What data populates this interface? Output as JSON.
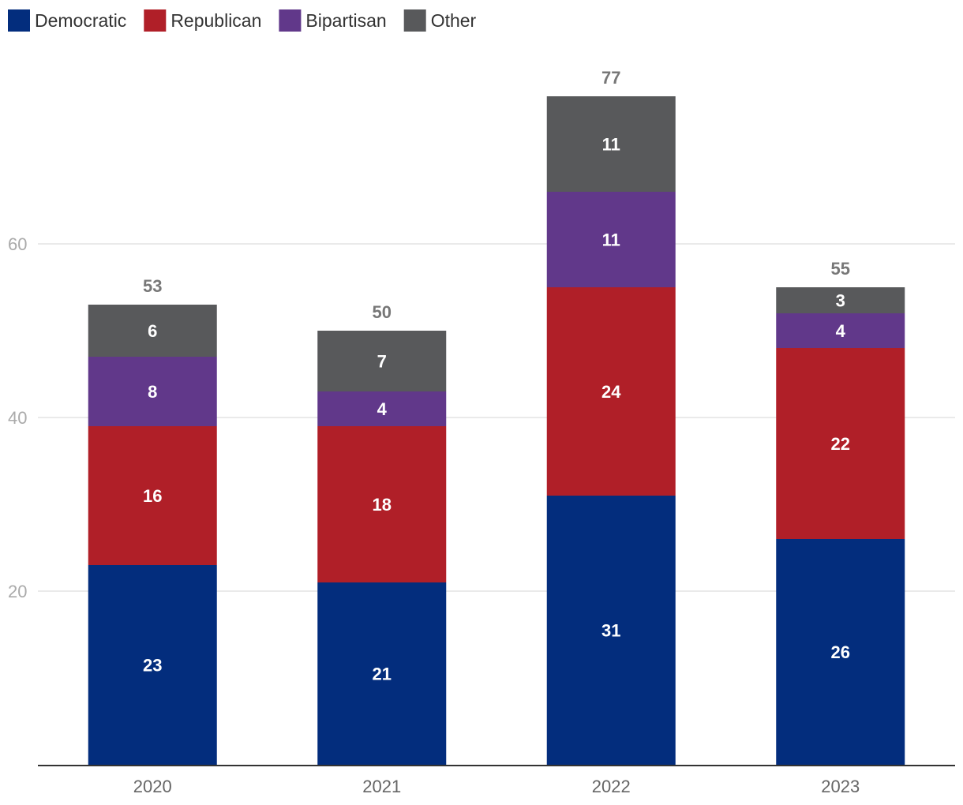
{
  "chart_data": {
    "type": "bar",
    "stacked": true,
    "categories": [
      "2020",
      "2021",
      "2022",
      "2023"
    ],
    "series": [
      {
        "name": "Democratic",
        "color": "#032d7d",
        "values": [
          23,
          21,
          31,
          26
        ]
      },
      {
        "name": "Republican",
        "color": "#b01f28",
        "values": [
          16,
          18,
          24,
          22
        ]
      },
      {
        "name": "Bipartisan",
        "color": "#61388a",
        "values": [
          8,
          4,
          11,
          4
        ]
      },
      {
        "name": "Other",
        "color": "#58595b",
        "values": [
          6,
          7,
          11,
          3
        ]
      }
    ],
    "totals": [
      53,
      50,
      77,
      55
    ],
    "y_ticks": [
      20,
      40,
      60
    ],
    "ylim": [
      0,
      78
    ],
    "title": "",
    "xlabel": "",
    "ylabel": "",
    "legend_position": "top-left",
    "grid": true
  }
}
